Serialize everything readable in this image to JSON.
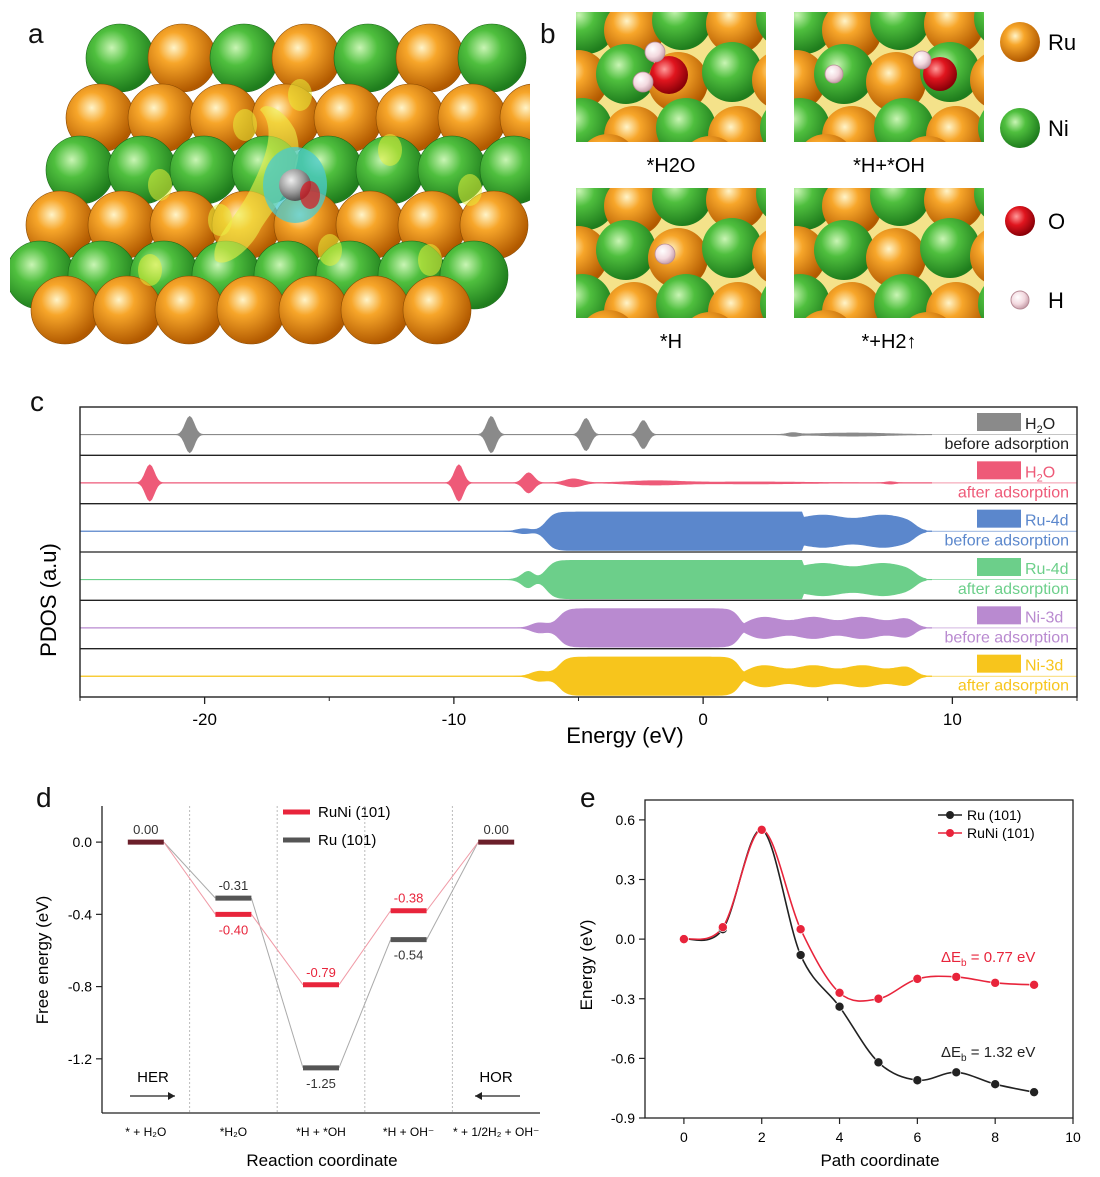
{
  "panel_labels": [
    "a",
    "b",
    "c",
    "d",
    "e"
  ],
  "panel_b": {
    "states": [
      "*H2O",
      "*H+*OH",
      "*H",
      "*+H2↑"
    ],
    "legend": [
      {
        "label": "Ru",
        "color": "#e8860d"
      },
      {
        "label": "Ni",
        "color": "#3fb83a"
      },
      {
        "label": "O",
        "color": "#d8141e"
      },
      {
        "label": "H",
        "color": "#f2d8df"
      }
    ]
  },
  "chart_data": [
    {
      "id": "c",
      "type": "area",
      "xlabel": "Energy (eV)",
      "ylabel": "PDOS (a.u)",
      "xlim": [
        -25,
        15
      ],
      "xticks": [
        -20,
        -10,
        0,
        10
      ],
      "xtick_labels": [
        "-20",
        "-10",
        "0",
        "10"
      ],
      "series": [
        {
          "name": "H2O",
          "state": "before adsorption",
          "color": "#8a8a8a",
          "peaks": [
            [
              -20.6,
              0.9,
              0.25
            ],
            [
              -8.5,
              0.9,
              0.25
            ],
            [
              -4.7,
              0.8,
              0.25
            ],
            [
              -2.4,
              0.7,
              0.25
            ],
            [
              3.6,
              0.08,
              0.3
            ],
            [
              6.0,
              0.08,
              2.0
            ]
          ]
        },
        {
          "name": "H2O",
          "state": "after adsorption",
          "color": "#ee5a78",
          "peaks": [
            [
              -22.2,
              0.9,
              0.25
            ],
            [
              -9.8,
              0.9,
              0.25
            ],
            [
              -7.0,
              0.5,
              0.3
            ],
            [
              -5.2,
              0.2,
              0.5
            ],
            [
              -2.0,
              0.1,
              1.5
            ],
            [
              2.0,
              0.05,
              3.0
            ],
            [
              7.5,
              0.06,
              0.3
            ]
          ]
        },
        {
          "name": "Ru-4d",
          "state": "before adsorption",
          "color": "#5b87cc",
          "band": [
            -6.3,
            8.5
          ],
          "lumps": [
            4.8,
            5.8,
            7.0,
            8.0
          ]
        },
        {
          "name": "Ru-4d",
          "state": "after adsorption",
          "color": "#6ccf8a",
          "band": [
            -6.3,
            8.5
          ],
          "lumps": [
            4.8,
            5.8,
            7.0,
            8.0
          ],
          "extra": [
            -7.0,
            0.3
          ]
        },
        {
          "name": "Ni-3d",
          "state": "before adsorption",
          "color": "#b98ad0",
          "band": [
            -5.8,
            1.6
          ],
          "tail": [
            1.6,
            8.5
          ]
        },
        {
          "name": "Ni-3d",
          "state": "after adsorption",
          "color": "#f7c51c",
          "band": [
            -5.8,
            1.6
          ],
          "tail": [
            1.6,
            8.5
          ]
        }
      ]
    },
    {
      "id": "d",
      "type": "line",
      "ylabel": "Free energy (eV)",
      "xlabel": "Reaction coordinate",
      "ylim": [
        -1.5,
        0.2
      ],
      "yticks": [
        0.0,
        -0.4,
        -0.8,
        -1.2
      ],
      "ytick_labels": [
        "0.0",
        "-0.4",
        "-0.8",
        "-1.2"
      ],
      "categories": [
        "* + H₂O",
        "*H₂O",
        "*H + *OH",
        "*H + OH⁻",
        "* + 1/2H₂ + OH⁻"
      ],
      "series": [
        {
          "name": "RuNi (101)",
          "color": "#e8243b",
          "values": [
            0.0,
            -0.4,
            -0.79,
            -0.38,
            0.0
          ],
          "labels": [
            "0.00",
            "-0.40",
            "-0.79",
            "-0.38",
            "0.00"
          ]
        },
        {
          "name": "Ru (101)",
          "color": "#555555",
          "values": [
            0.0,
            -0.31,
            -1.25,
            -0.54,
            0.0
          ],
          "labels": [
            "0.00",
            "-0.31",
            "-1.25",
            "-0.54",
            "0.00"
          ]
        }
      ],
      "annotations": [
        "HER",
        "HOR"
      ]
    },
    {
      "id": "e",
      "type": "line",
      "xlabel": "Path coordinate",
      "ylabel": "Energy (eV)",
      "xlim": [
        -1,
        10
      ],
      "ylim": [
        -0.9,
        0.7
      ],
      "xticks": [
        0,
        2,
        4,
        6,
        8,
        10
      ],
      "xtick_labels": [
        "0",
        "2",
        "4",
        "6",
        "8",
        "10"
      ],
      "yticks": [
        0.6,
        0.3,
        0.0,
        -0.3,
        -0.6,
        -0.9
      ],
      "ytick_labels": [
        "0.6",
        "0.3",
        "0.0",
        "-0.3",
        "-0.6",
        "-0.9"
      ],
      "x": [
        0,
        1,
        2,
        3,
        4,
        5,
        6,
        7,
        8,
        9
      ],
      "series": [
        {
          "name": "Ru (101)",
          "color": "#222222",
          "values": [
            0.0,
            0.05,
            0.55,
            -0.08,
            -0.34,
            -0.62,
            -0.71,
            -0.67,
            -0.73,
            -0.77
          ]
        },
        {
          "name": "RuNi (101)",
          "color": "#e8243b",
          "values": [
            0.0,
            0.06,
            0.55,
            0.05,
            -0.27,
            -0.3,
            -0.2,
            -0.19,
            -0.22,
            -0.23
          ]
        }
      ],
      "annotations": [
        {
          "prefix": "ΔE",
          "sub": "b",
          "suffix": " = 0.77 eV",
          "color": "#e8243b"
        },
        {
          "prefix": "ΔE",
          "sub": "b",
          "suffix": " = 1.32 eV",
          "color": "#222222"
        }
      ]
    }
  ]
}
